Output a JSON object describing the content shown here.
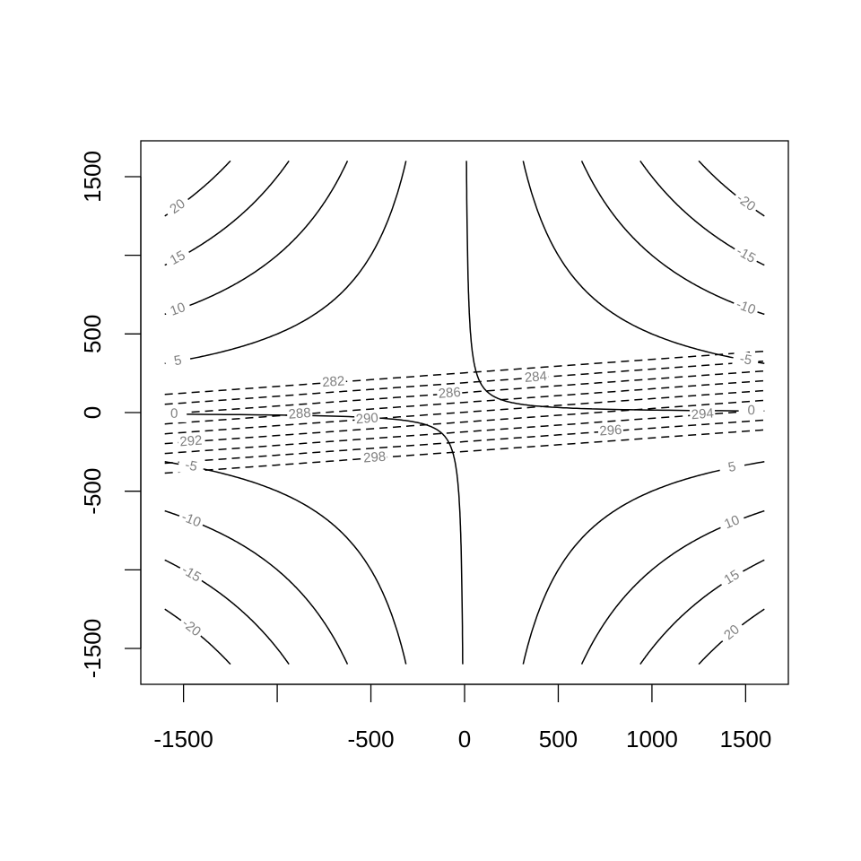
{
  "chart_data": {
    "type": "contour",
    "xlim": [
      -1728,
      1728
    ],
    "ylim": [
      -1728,
      1728
    ],
    "xticks": [
      -1500,
      {
        "value": -1000,
        "label": null
      },
      -500,
      0,
      500,
      1000,
      1500
    ],
    "yticks": [
      -1500,
      {
        "value": -1000,
        "label": null
      },
      -500,
      0,
      500,
      {
        "value": 1000,
        "label": null
      },
      1500
    ],
    "series": [
      {
        "values": [
          -20,
          -15,
          -10,
          -5,
          0,
          5,
          10,
          15,
          20
        ],
        "color": "#000000",
        "dashed": false
      },
      {
        "values": [
          282,
          284,
          286,
          288,
          290,
          292,
          294,
          296,
          298
        ],
        "color": "#000000",
        "dashed": true
      }
    ],
    "label_color": "#808080"
  }
}
